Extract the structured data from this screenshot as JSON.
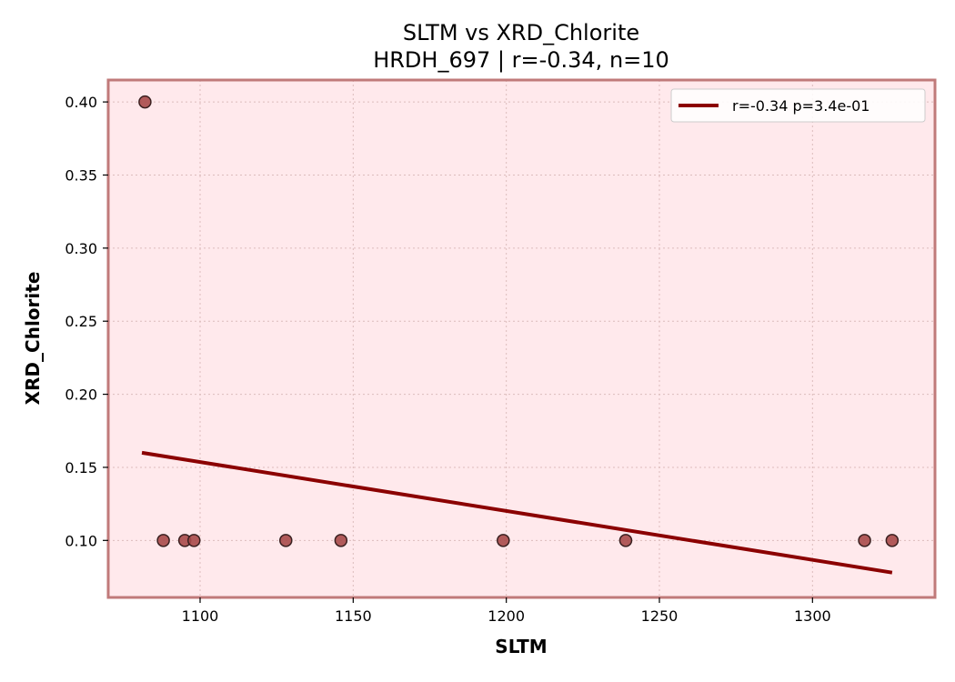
{
  "chart_data": {
    "type": "scatter",
    "title": "SLTM vs XRD_Chlorite",
    "subtitle": "HRDH_697 | r=-0.34, n=10",
    "xlabel": "SLTM",
    "ylabel": "XRD_Chlorite",
    "xlim": [
      1070,
      1340
    ],
    "ylim": [
      0.061,
      0.415
    ],
    "xticks": [
      1100,
      1150,
      1200,
      1250,
      1300
    ],
    "yticks": [
      0.1,
      0.15,
      0.2,
      0.25,
      0.3,
      0.35,
      0.4
    ],
    "grid": true,
    "legend_position": "upper-right",
    "points": [
      {
        "x": 1082,
        "y": 0.4
      },
      {
        "x": 1088,
        "y": 0.1
      },
      {
        "x": 1095,
        "y": 0.1
      },
      {
        "x": 1098,
        "y": 0.1
      },
      {
        "x": 1128,
        "y": 0.1
      },
      {
        "x": 1146,
        "y": 0.1
      },
      {
        "x": 1199,
        "y": 0.1
      },
      {
        "x": 1239,
        "y": 0.1
      },
      {
        "x": 1317,
        "y": 0.1
      },
      {
        "x": 1326,
        "y": 0.1
      }
    ],
    "trendline": {
      "label": "r=-0.34  p=3.4e-01",
      "x": [
        1081,
        1326
      ],
      "y": [
        0.16,
        0.078
      ]
    },
    "colors": {
      "plot_background": "#ffe9ec",
      "frame": "#c07a7a",
      "point_fill": "#a84a4a",
      "point_edge": "#3a2020",
      "trendline": "#8b0000",
      "grid": "#dcbcbc"
    }
  }
}
